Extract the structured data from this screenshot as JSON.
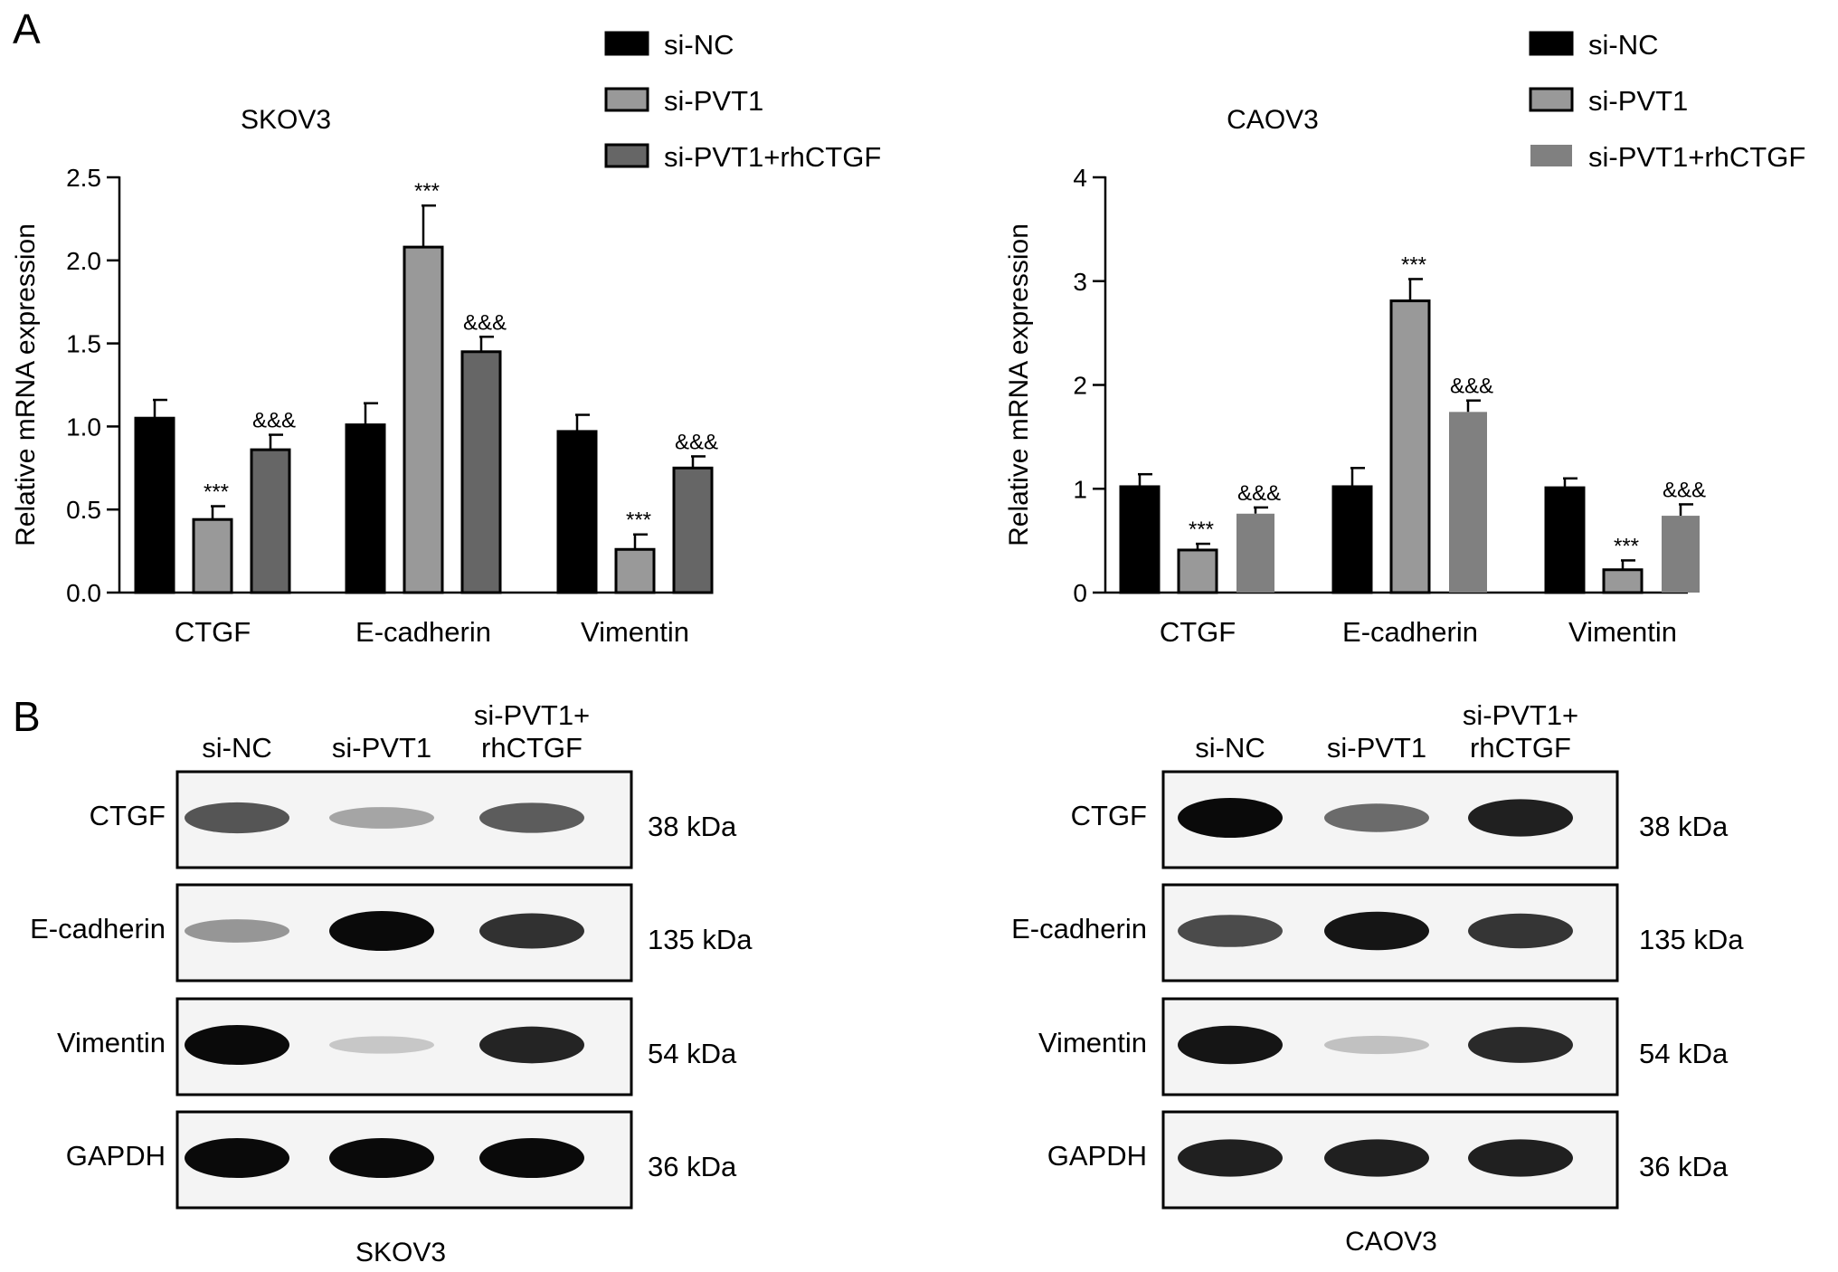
{
  "panels": {
    "a_label": "A",
    "b_label": "B"
  },
  "chart_data": [
    {
      "type": "bar",
      "title": "SKOV3",
      "ylabel": "Relative mRNA expression",
      "xlabel": "",
      "categories": [
        "CTGF",
        "E-cadherin",
        "Vimentin"
      ],
      "ylim": [
        0,
        2.5
      ],
      "yticks": [
        0.0,
        0.5,
        1.0,
        1.5,
        2.0,
        2.5
      ],
      "ytick_labels": [
        "0.0",
        "0.5",
        "1.0",
        "1.5",
        "2.0",
        "2.5"
      ],
      "legend_position": "top-right",
      "series": [
        {
          "name": "si-NC",
          "color": "#000000",
          "values": [
            1.05,
            1.01,
            0.97
          ],
          "errors": [
            0.11,
            0.13,
            0.1
          ],
          "labels": [
            "",
            "",
            ""
          ]
        },
        {
          "name": "si-PVT1",
          "color": "#999999",
          "values": [
            0.44,
            2.08,
            0.26
          ],
          "errors": [
            0.08,
            0.25,
            0.09
          ],
          "labels": [
            "***",
            "***",
            "***"
          ]
        },
        {
          "name": "si-PVT1+rhCTGF",
          "color": "#666666",
          "values": [
            0.86,
            1.45,
            0.75
          ],
          "errors": [
            0.09,
            0.09,
            0.07
          ],
          "labels": [
            "&&&",
            "&&&",
            "&&&"
          ]
        }
      ]
    },
    {
      "type": "bar",
      "title": "CAOV3",
      "ylabel": "Relative mRNA expression",
      "xlabel": "",
      "categories": [
        "CTGF",
        "E-cadherin",
        "Vimentin"
      ],
      "ylim": [
        0,
        4
      ],
      "yticks": [
        0,
        1,
        2,
        3,
        4
      ],
      "ytick_labels": [
        "0",
        "1",
        "2",
        "3",
        "4"
      ],
      "legend_position": "top-right",
      "series": [
        {
          "name": "si-NC",
          "color": "#000000",
          "values": [
            1.02,
            1.02,
            1.01
          ],
          "errors": [
            0.12,
            0.18,
            0.09
          ],
          "labels": [
            "",
            "",
            ""
          ]
        },
        {
          "name": "si-PVT1",
          "color": "#999999",
          "values": [
            0.41,
            2.81,
            0.22
          ],
          "errors": [
            0.06,
            0.21,
            0.09
          ],
          "labels": [
            "***",
            "***",
            "***"
          ]
        },
        {
          "name": "si-PVT1+rhCTGF",
          "color": "#808080",
          "values": [
            0.76,
            1.74,
            0.74
          ],
          "errors": [
            0.06,
            0.11,
            0.11
          ],
          "labels": [
            "&&&",
            "&&&",
            "&&&"
          ]
        }
      ]
    }
  ],
  "blots": [
    {
      "cell_line": "SKOV3",
      "lanes": [
        {
          "lines": [
            "si-NC"
          ]
        },
        {
          "lines": [
            "si-PVT1"
          ]
        },
        {
          "lines": [
            "si-PVT1+",
            "rhCTGF"
          ]
        }
      ],
      "rows": [
        {
          "protein": "CTGF",
          "kda": "38 kDa",
          "intensity": [
            0.65,
            0.28,
            0.62
          ]
        },
        {
          "protein": "E-cadherin",
          "kda": "135 kDa",
          "intensity": [
            0.35,
            1.0,
            0.82
          ]
        },
        {
          "protein": "Vimentin",
          "kda": "54 kDa",
          "intensity": [
            1.0,
            0.12,
            0.88
          ]
        },
        {
          "protein": "GAPDH",
          "kda": "36 kDa",
          "intensity": [
            1.0,
            1.0,
            1.0
          ]
        }
      ]
    },
    {
      "cell_line": "CAOV3",
      "lanes": [
        {
          "lines": [
            "si-NC"
          ]
        },
        {
          "lines": [
            "si-PVT1"
          ]
        },
        {
          "lines": [
            "si-PVT1+",
            "rhCTGF"
          ]
        }
      ],
      "rows": [
        {
          "protein": "CTGF",
          "kda": "38 kDa",
          "intensity": [
            1.0,
            0.55,
            0.9
          ]
        },
        {
          "protein": "E-cadherin",
          "kda": "135 kDa",
          "intensity": [
            0.7,
            0.95,
            0.8
          ]
        },
        {
          "protein": "Vimentin",
          "kda": "54 kDa",
          "intensity": [
            0.95,
            0.15,
            0.85
          ]
        },
        {
          "protein": "GAPDH",
          "kda": "36 kDa",
          "intensity": [
            0.9,
            0.9,
            0.9
          ]
        }
      ]
    }
  ]
}
